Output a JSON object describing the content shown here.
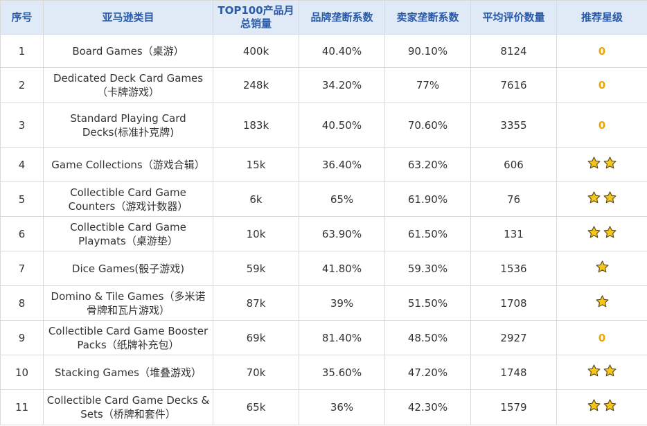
{
  "headers": [
    "序号",
    "亚马逊类目",
    "TOP100产品月总销量",
    "品牌垄断系数",
    "卖家垄断系数",
    "平均评价数量",
    "推荐星级"
  ],
  "colors": {
    "header_bg": "#dfeaf6",
    "header_text": "#2a5aa8",
    "zero_text": "#f0a500",
    "star_fill": "#f5c518",
    "star_stroke": "#5a4a1a"
  },
  "rows": [
    {
      "no": "1",
      "category": "Board Games（桌游）",
      "sales": "400k",
      "brand": "40.40%",
      "seller": "90.10%",
      "reviews": "8124",
      "stars": 0,
      "rating_text": "0"
    },
    {
      "no": "2",
      "category": "Dedicated Deck Card Games（卡牌游戏）",
      "sales": "248k",
      "brand": "34.20%",
      "seller": "77%",
      "reviews": "7616",
      "stars": 0,
      "rating_text": "0"
    },
    {
      "no": "3",
      "category": "Standard Playing Card Decks(标准扑克牌)",
      "sales": "183k",
      "brand": "40.50%",
      "seller": "70.60%",
      "reviews": "3355",
      "stars": 0,
      "rating_text": "0"
    },
    {
      "no": "4",
      "category": "Game Collections（游戏合辑）",
      "sales": "15k",
      "brand": "36.40%",
      "seller": "63.20%",
      "reviews": "606",
      "stars": 2,
      "rating_text": ""
    },
    {
      "no": "5",
      "category": "Collectible Card Game Counters（游戏计数器）",
      "sales": "6k",
      "brand": "65%",
      "seller": "61.90%",
      "reviews": "76",
      "stars": 2,
      "rating_text": ""
    },
    {
      "no": "6",
      "category": "Collectible Card Game Playmats（桌游垫）",
      "sales": "10k",
      "brand": "63.90%",
      "seller": "61.50%",
      "reviews": "131",
      "stars": 2,
      "rating_text": ""
    },
    {
      "no": "7",
      "category": "Dice Games(骰子游戏)",
      "sales": "59k",
      "brand": "41.80%",
      "seller": "59.30%",
      "reviews": "1536",
      "stars": 1,
      "rating_text": ""
    },
    {
      "no": "8",
      "category": "Domino & Tile Games（多米诺骨牌和瓦片游戏）",
      "sales": "87k",
      "brand": "39%",
      "seller": "51.50%",
      "reviews": "1708",
      "stars": 1,
      "rating_text": ""
    },
    {
      "no": "9",
      "category": "Collectible Card Game Booster Packs（纸牌补充包）",
      "sales": "69k",
      "brand": "81.40%",
      "seller": "48.50%",
      "reviews": "2927",
      "stars": 0,
      "rating_text": "0"
    },
    {
      "no": "10",
      "category": "Stacking Games（堆叠游戏）",
      "sales": "70k",
      "brand": "35.60%",
      "seller": "47.20%",
      "reviews": "1748",
      "stars": 2,
      "rating_text": ""
    },
    {
      "no": "11",
      "category": "Collectible Card Game Decks & Sets（桥牌和套件）",
      "sales": "65k",
      "brand": "36%",
      "seller": "42.30%",
      "reviews": "1579",
      "stars": 2,
      "rating_text": ""
    }
  ]
}
